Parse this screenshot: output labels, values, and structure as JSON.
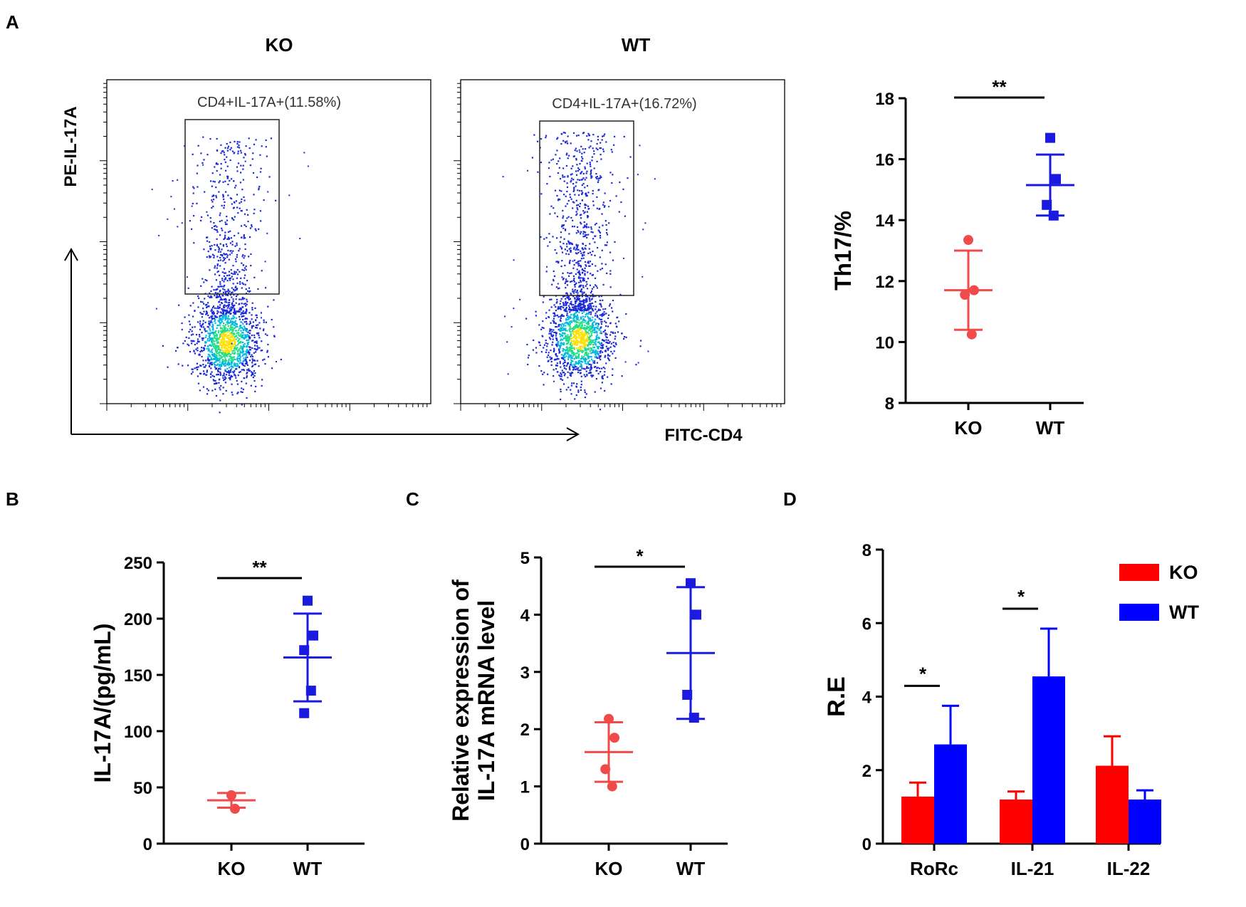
{
  "panel_labels": {
    "A": "A",
    "B": "B",
    "C": "C",
    "D": "D"
  },
  "flow": {
    "x_axis_label": "FITC-CD4",
    "y_axis_label": "PE-IL-17A",
    "plots": [
      {
        "title": "KO",
        "gate_label": "CD4+IL-17A+(11.58%)"
      },
      {
        "title": "WT",
        "gate_label": "CD4+IL-17A+(16.72%)"
      }
    ]
  },
  "chart_data": [
    {
      "id": "th17",
      "type": "scatter",
      "title": "",
      "xlabel": "",
      "ylabel": "Th17/%",
      "ylim": [
        8,
        18
      ],
      "yticks": [
        8,
        10,
        12,
        14,
        16,
        18
      ],
      "categories": [
        "KO",
        "WT"
      ],
      "colors": [
        "#f04a4a",
        "#1a1ae0"
      ],
      "points": [
        [
          13.35,
          11.7,
          11.55,
          10.25
        ],
        [
          16.7,
          15.35,
          14.5,
          14.15
        ]
      ],
      "mean": [
        11.7,
        15.15
      ],
      "sd": [
        1.3,
        1.0
      ],
      "significance": "**"
    },
    {
      "id": "il17",
      "type": "scatter",
      "title": "",
      "xlabel": "",
      "ylabel": "IL-17A/(pg/mL)",
      "ylim": [
        0,
        250
      ],
      "yticks": [
        0,
        50,
        100,
        150,
        200,
        250
      ],
      "categories": [
        "KO",
        "WT"
      ],
      "colors": [
        "#f04a4a",
        "#1a1ae0"
      ],
      "points": [
        [
          43,
          31
        ],
        [
          216,
          185,
          172,
          136,
          116
        ]
      ],
      "mean": [
        38.5,
        165.5
      ],
      "sd": [
        6.5,
        39
      ],
      "significance": "**"
    },
    {
      "id": "mrna",
      "type": "scatter",
      "title": "",
      "xlabel": "",
      "ylabel": "Relative expression of IL-17A mRNA level",
      "ylabel_lines": [
        "Relative expression of",
        "IL-17A mRNA level"
      ],
      "ylim": [
        0,
        5
      ],
      "yticks": [
        0,
        1,
        2,
        3,
        4,
        5
      ],
      "categories": [
        "KO",
        "WT"
      ],
      "colors": [
        "#f04a4a",
        "#1a1ae0"
      ],
      "points": [
        [
          2.18,
          1.85,
          1.3,
          1.0
        ],
        [
          4.55,
          4.0,
          2.6,
          2.2
        ]
      ],
      "mean": [
        1.6,
        3.33
      ],
      "sd": [
        0.52,
        1.15
      ],
      "significance": "*"
    },
    {
      "id": "re",
      "type": "bar",
      "title": "",
      "xlabel": "",
      "ylabel": "R.E",
      "ylim": [
        0,
        8
      ],
      "yticks": [
        0,
        2,
        4,
        6,
        8
      ],
      "categories": [
        "RoRc",
        "IL-21",
        "IL-22"
      ],
      "series": [
        {
          "name": "KO",
          "color": "#ff0000",
          "values": [
            1.28,
            1.2,
            2.12
          ],
          "errors": [
            0.38,
            0.22,
            0.8
          ]
        },
        {
          "name": "WT",
          "color": "#0000ff",
          "values": [
            2.7,
            4.55,
            1.2
          ],
          "errors": [
            1.05,
            1.3,
            0.25
          ]
        }
      ],
      "significance": [
        {
          "category": "RoRc",
          "label": "*"
        },
        {
          "category": "IL-21",
          "label": "*"
        }
      ],
      "legend_position": "top-right"
    }
  ]
}
